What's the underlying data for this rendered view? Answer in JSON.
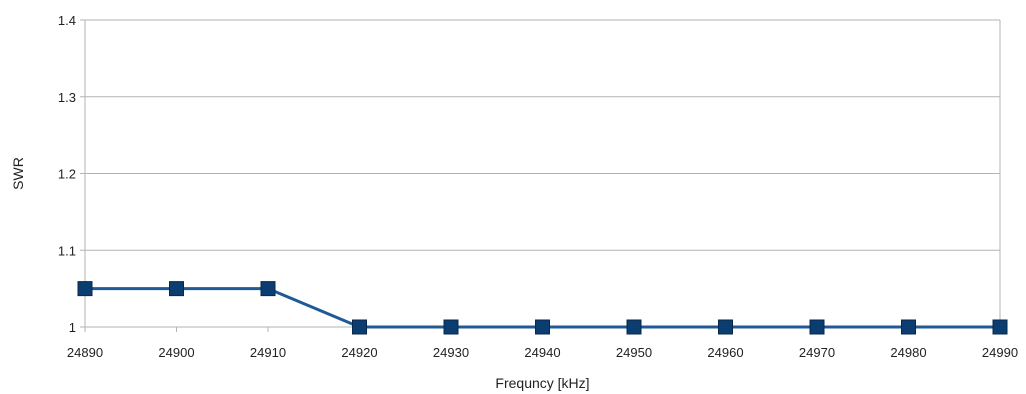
{
  "chart_data": {
    "type": "line",
    "title": "",
    "xlabel": "Frequncy [kHz]",
    "ylabel": "SWR",
    "x": [
      24890,
      24900,
      24910,
      24920,
      24930,
      24940,
      24950,
      24960,
      24970,
      24980,
      24990
    ],
    "series": [
      {
        "values": [
          1.05,
          1.05,
          1.05,
          1,
          1,
          1,
          1,
          1,
          1,
          1,
          1
        ]
      }
    ],
    "ylim": [
      1,
      1.4
    ],
    "yticks": [
      1,
      1.1,
      1.2,
      1.3,
      1.4
    ],
    "ytick_labels": [
      "1",
      "1.1",
      "1.2",
      "1.3",
      "1.4"
    ],
    "xlim": [
      24890,
      24990
    ],
    "grid": "horizontal",
    "legend": "none",
    "line_color": "#1f5a96",
    "marker_color": "#0b3d70",
    "grid_color": "#b3b3b3"
  }
}
